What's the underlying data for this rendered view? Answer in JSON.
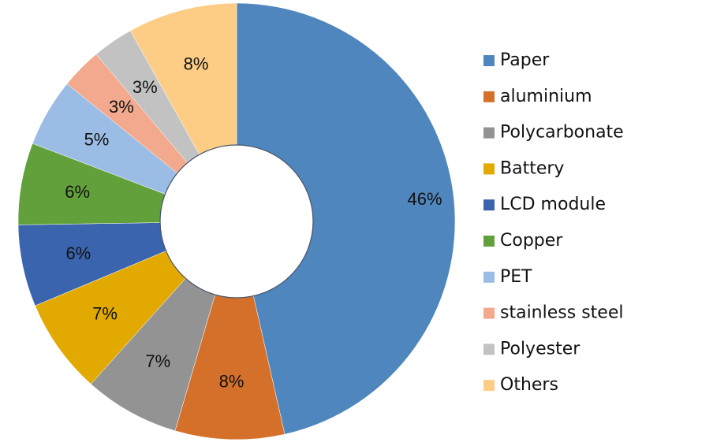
{
  "chart_data": {
    "type": "donut",
    "categories": [
      "Paper",
      "aluminium",
      "Polycarbonate",
      "Battery",
      "LCD module",
      "Copper",
      "PET",
      "stainless steel",
      "Polyester",
      "Others"
    ],
    "values": [
      46,
      8,
      7,
      7,
      6,
      6,
      5,
      3,
      3,
      8
    ],
    "value_labels": [
      "46%",
      "8%",
      "7%",
      "7%",
      "6%",
      "6%",
      "5%",
      "3%",
      "3%",
      "8%"
    ],
    "colors": [
      "#4f86bd",
      "#d5702b",
      "#939393",
      "#e2aa00",
      "#3a64ad",
      "#62a03b",
      "#9bbde5",
      "#f2a98e",
      "#c2c2c2",
      "#fdcd85"
    ],
    "legend": "right"
  }
}
